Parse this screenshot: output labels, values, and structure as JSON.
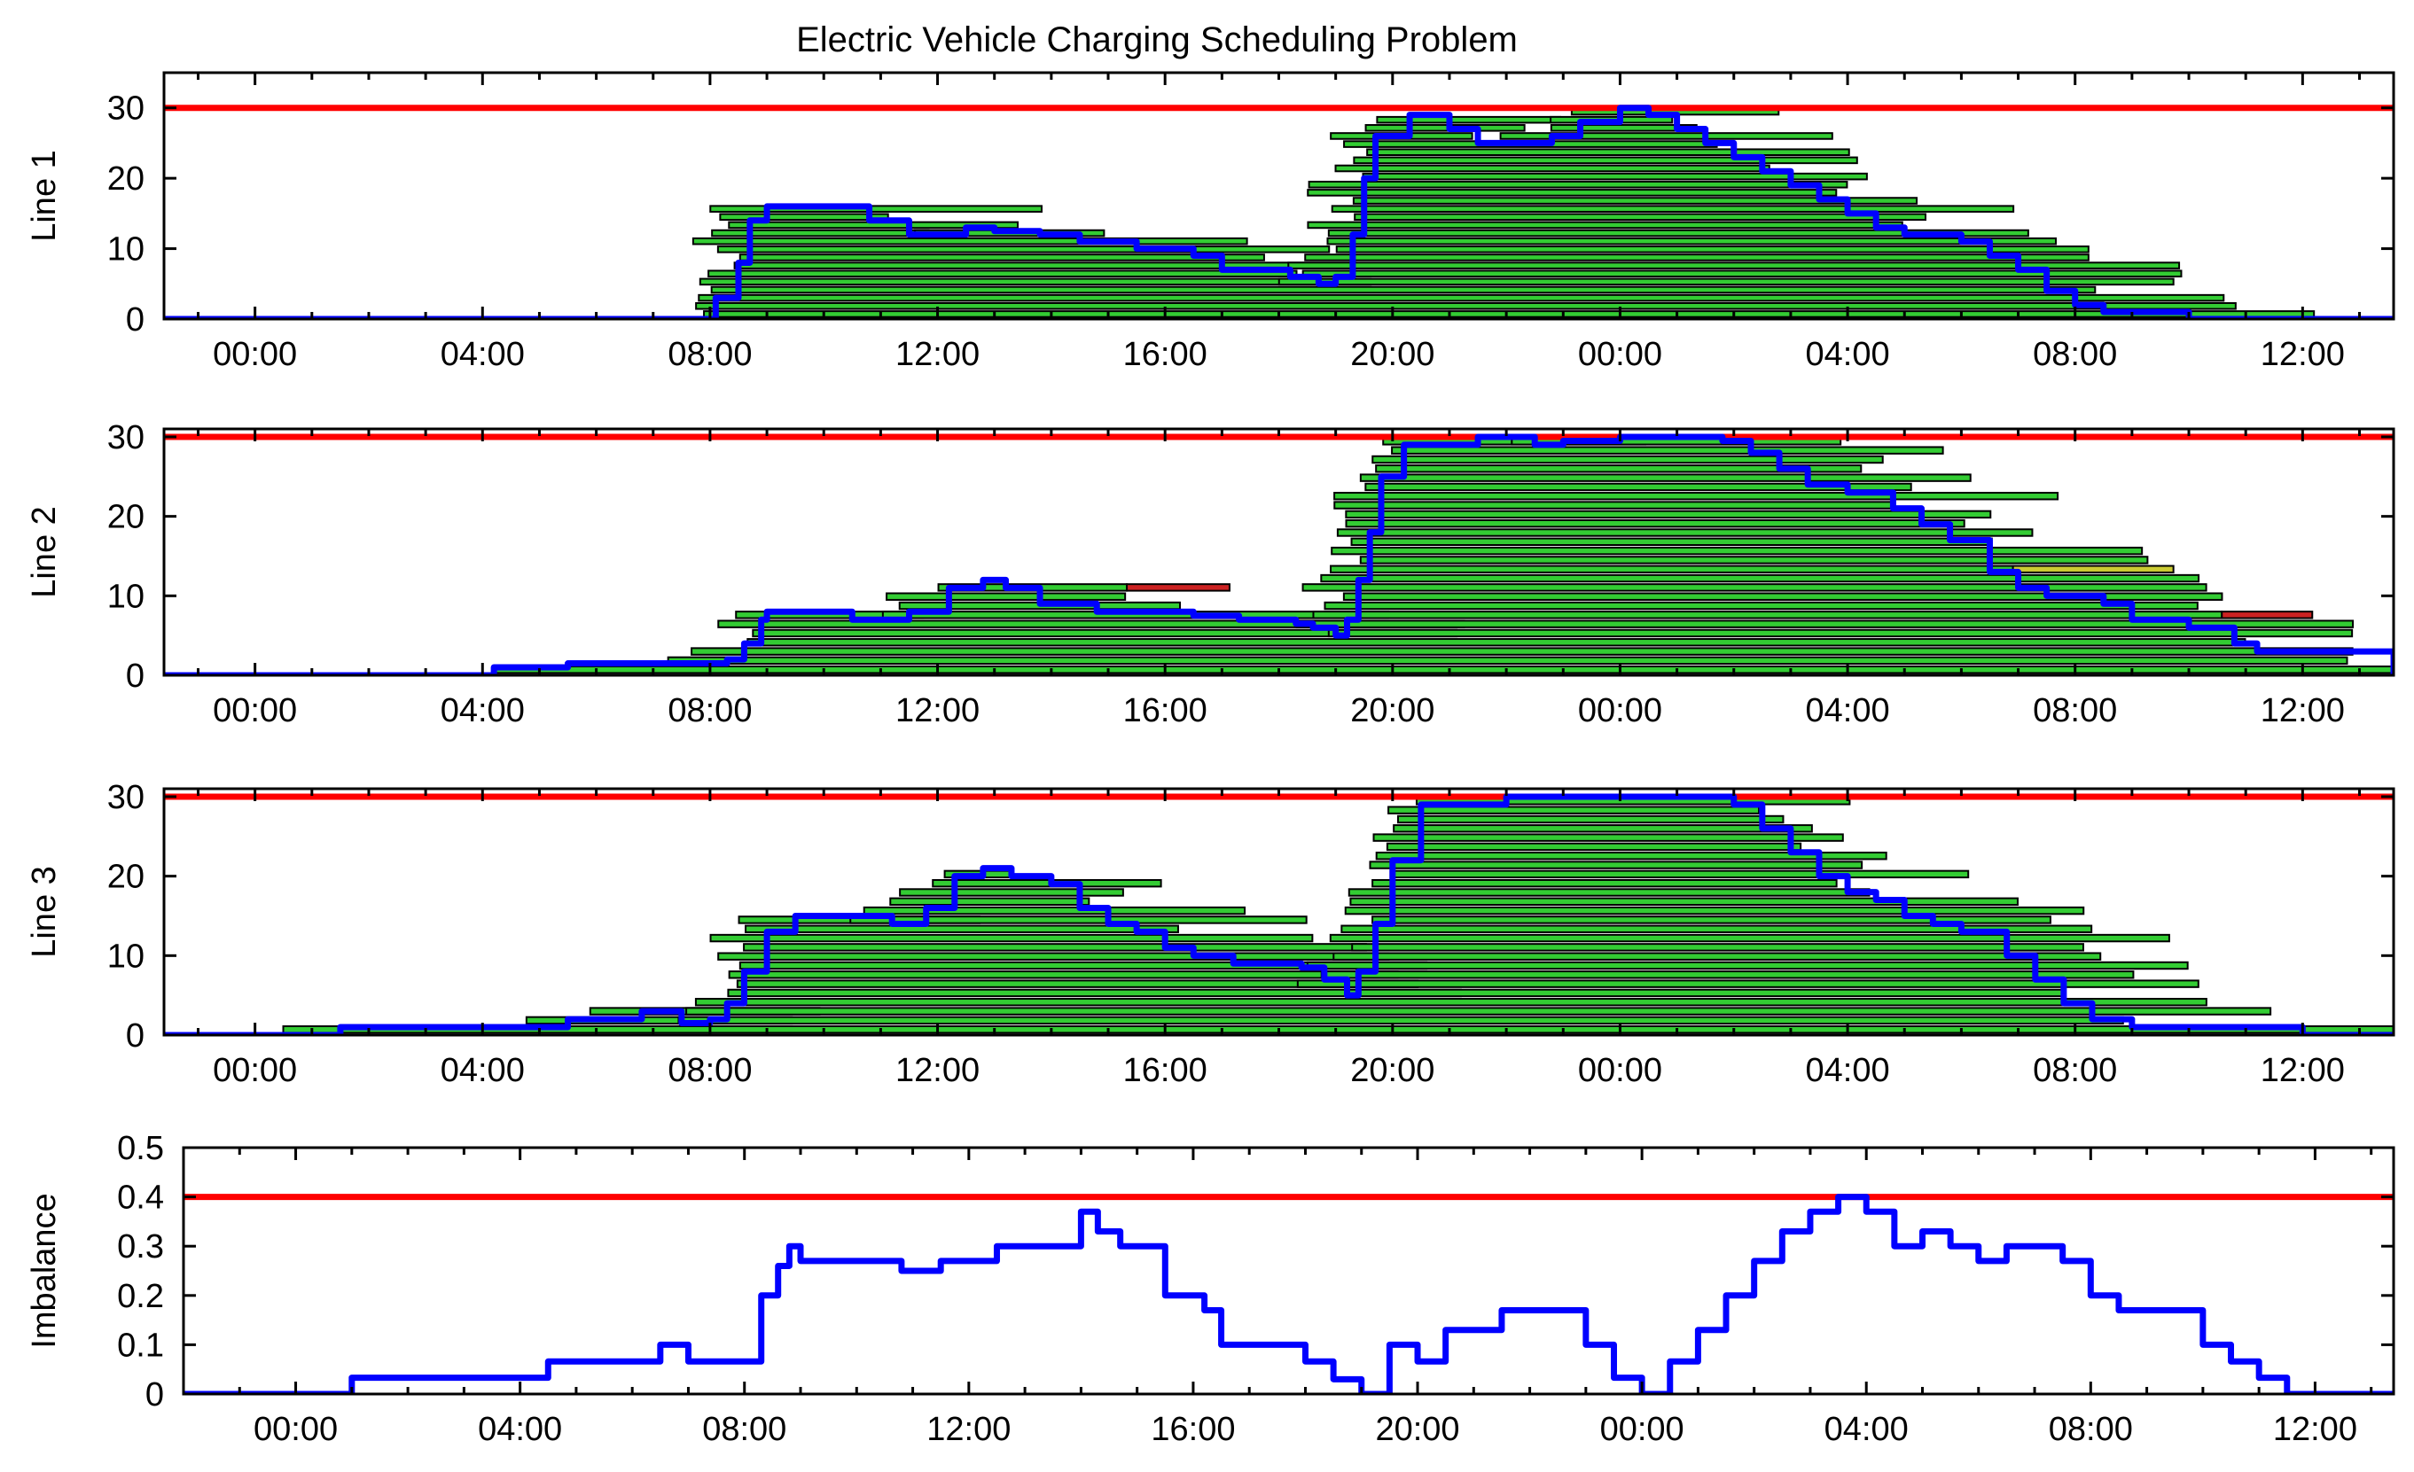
{
  "title": "Electric Vehicle Charging Scheduling Problem",
  "colors": {
    "limit": "#ff0000",
    "load": "#0000ff",
    "bar_fill": "#33cc33",
    "bar_delayed": "#cccc33",
    "bar_late": "#cc2222",
    "bar_edge": "#000000"
  },
  "chart_data": [
    {
      "type": "area",
      "ylabel": "Line 1",
      "ylim": [
        0,
        35
      ],
      "yticks": [
        0,
        10,
        20,
        30
      ],
      "xticks": [
        "00:00",
        "04:00",
        "08:00",
        "12:00",
        "16:00",
        "20:00",
        "00:00",
        "04:00",
        "08:00",
        "12:00"
      ],
      "x_unit": "hours from 00:00 of day 1",
      "xlim": [
        -1.6,
        37.6
      ],
      "limit": 30,
      "series": [
        {
          "x": [
            -1.6,
            8.0,
            8.1,
            8.5,
            8.7,
            9.0,
            10.2,
            10.8,
            11.5,
            11.8,
            12.5,
            13.0,
            13.8,
            14.5,
            15.5,
            16.5,
            17.0,
            17.8,
            18.2,
            18.7,
            19.0,
            19.3,
            19.5,
            19.7,
            20.3,
            20.5,
            21.0,
            21.5,
            22.5,
            22.8,
            23.3,
            24.0,
            24.5,
            25.0,
            25.5,
            26.0,
            26.5,
            27.0,
            27.5,
            28.0,
            28.5,
            29.0,
            30.0,
            30.5,
            31.0,
            31.5,
            32.0,
            32.5,
            33.5,
            34.0,
            37.6
          ],
          "y": [
            0,
            0,
            3,
            8,
            14,
            16,
            16,
            14,
            12,
            12,
            13,
            12.5,
            12,
            11,
            10,
            9,
            7,
            7,
            6,
            5,
            6,
            12,
            20,
            26,
            29,
            29,
            27,
            25,
            25,
            26,
            28,
            30,
            29,
            27,
            25,
            23,
            21,
            19,
            17,
            15,
            13,
            12,
            11,
            9,
            7,
            4,
            2,
            1,
            1,
            0,
            0
          ]
        }
      ]
    },
    {
      "type": "area",
      "ylabel": "Line 2",
      "ylim": [
        0,
        31
      ],
      "yticks": [
        0,
        10,
        20,
        30
      ],
      "xticks": [
        "00:00",
        "04:00",
        "08:00",
        "12:00",
        "16:00",
        "20:00",
        "00:00",
        "04:00",
        "08:00",
        "12:00"
      ],
      "x_unit": "hours from 00:00 of day 1",
      "xlim": [
        -1.6,
        37.6
      ],
      "limit": 30,
      "series": [
        {
          "x": [
            -1.6,
            4.0,
            4.2,
            5.5,
            6.5,
            8.0,
            8.3,
            8.6,
            8.9,
            9.0,
            10.5,
            11.2,
            11.5,
            12.2,
            12.8,
            13.2,
            13.8,
            14.8,
            15.8,
            16.5,
            17.3,
            18.3,
            18.6,
            19.0,
            19.2,
            19.4,
            19.6,
            19.8,
            20.2,
            21.5,
            22.5,
            23.0,
            24.0,
            25.0,
            25.8,
            26.3,
            26.8,
            27.3,
            28.0,
            28.8,
            29.3,
            29.8,
            30.5,
            31.0,
            31.5,
            32.0,
            32.5,
            33.0,
            34.0,
            34.8,
            35.2,
            37.6
          ],
          "y": [
            0,
            0,
            1,
            1.5,
            1.5,
            1.5,
            2,
            4,
            7,
            8,
            7,
            7,
            8,
            11,
            12,
            11,
            9,
            8,
            8,
            7.5,
            7,
            6.5,
            6,
            5,
            7,
            12,
            18,
            25,
            29,
            30,
            29,
            29.5,
            30,
            30,
            29.5,
            28,
            26,
            24,
            23,
            21,
            19,
            17,
            13,
            11,
            10,
            10,
            9,
            7,
            6,
            4,
            3,
            0
          ]
        }
      ]
    },
    {
      "type": "area",
      "ylabel": "Line 3",
      "ylim": [
        0,
        31
      ],
      "yticks": [
        0,
        10,
        20,
        30
      ],
      "xticks": [
        "00:00",
        "04:00",
        "08:00",
        "12:00",
        "16:00",
        "20:00",
        "00:00",
        "04:00",
        "08:00",
        "12:00"
      ],
      "x_unit": "hours from 00:00 of day 1",
      "xlim": [
        -1.6,
        37.6
      ],
      "limit": 30,
      "series": [
        {
          "x": [
            -1.6,
            1.0,
            1.5,
            3.5,
            4.5,
            5.5,
            6.3,
            6.8,
            7.5,
            8.0,
            8.3,
            8.6,
            9.0,
            9.5,
            10.5,
            11.2,
            11.8,
            12.3,
            12.8,
            13.3,
            14.0,
            14.5,
            15.0,
            15.5,
            16.0,
            16.5,
            17.2,
            17.8,
            18.4,
            18.8,
            19.2,
            19.4,
            19.7,
            20.0,
            20.5,
            22.0,
            23.0,
            24.5,
            25.5,
            26.0,
            26.5,
            27.0,
            27.5,
            28.0,
            28.5,
            29.0,
            29.5,
            30.0,
            30.8,
            31.3,
            31.8,
            32.3,
            33.0,
            33.8,
            34.5,
            35.5,
            36.0,
            37.6
          ],
          "y": [
            0,
            0,
            1,
            1,
            1,
            2,
            2,
            3,
            1.5,
            2,
            4,
            8,
            13,
            15,
            15,
            14,
            16,
            20,
            21,
            20,
            19,
            16,
            14,
            13,
            11,
            10,
            9,
            9,
            8.5,
            7,
            5,
            8,
            14,
            22,
            29,
            30,
            30,
            30,
            30,
            29,
            26,
            23,
            20,
            18,
            17,
            15,
            14,
            13,
            10,
            7,
            4,
            2,
            1,
            1,
            1,
            1,
            0,
            0
          ]
        }
      ]
    },
    {
      "type": "line",
      "ylabel": "Imbalance",
      "ylim": [
        0,
        0.5
      ],
      "yticks": [
        0,
        0.1,
        0.2,
        0.3,
        0.4,
        0.5
      ],
      "xticks": [
        "00:00",
        "04:00",
        "08:00",
        "12:00",
        "16:00",
        "20:00",
        "00:00",
        "04:00",
        "08:00",
        "12:00"
      ],
      "x_unit": "hours from 00:00 of day 1",
      "xlim": [
        -2.0,
        37.4
      ],
      "limit": 0.4,
      "series": [
        {
          "x": [
            -2.0,
            1.0,
            1.0,
            4.5,
            4.5,
            6.5,
            6.5,
            7.0,
            7.0,
            8.2,
            8.3,
            8.6,
            8.8,
            9.0,
            9.5,
            10.5,
            10.8,
            11.5,
            12.0,
            12.5,
            13.0,
            13.5,
            14.0,
            14.3,
            14.7,
            15.5,
            16.0,
            16.2,
            16.5,
            17.0,
            17.5,
            18.0,
            18.5,
            19.0,
            19.5,
            20.0,
            20.5,
            21.5,
            22.5,
            23.0,
            23.5,
            24.0,
            24.5,
            25.0,
            25.5,
            26.0,
            26.5,
            27.0,
            27.5,
            28.0,
            28.5,
            29.0,
            29.5,
            30.0,
            30.5,
            31.0,
            31.5,
            32.0,
            32.5,
            33.0,
            33.5,
            34.0,
            34.5,
            35.0,
            35.5,
            37.4
          ],
          "y": [
            0,
            0,
            0.033,
            0.033,
            0.066,
            0.066,
            0.1,
            0.1,
            0.066,
            0.066,
            0.2,
            0.26,
            0.3,
            0.27,
            0.27,
            0.27,
            0.25,
            0.27,
            0.27,
            0.3,
            0.3,
            0.3,
            0.37,
            0.33,
            0.3,
            0.2,
            0.2,
            0.17,
            0.1,
            0.1,
            0.1,
            0.066,
            0.03,
            0.0,
            0.1,
            0.066,
            0.13,
            0.17,
            0.17,
            0.1,
            0.033,
            0.0,
            0.066,
            0.13,
            0.2,
            0.27,
            0.33,
            0.37,
            0.4,
            0.37,
            0.3,
            0.33,
            0.3,
            0.27,
            0.3,
            0.3,
            0.27,
            0.2,
            0.17,
            0.17,
            0.17,
            0.1,
            0.066,
            0.033,
            0.0,
            0.0
          ]
        }
      ]
    }
  ]
}
